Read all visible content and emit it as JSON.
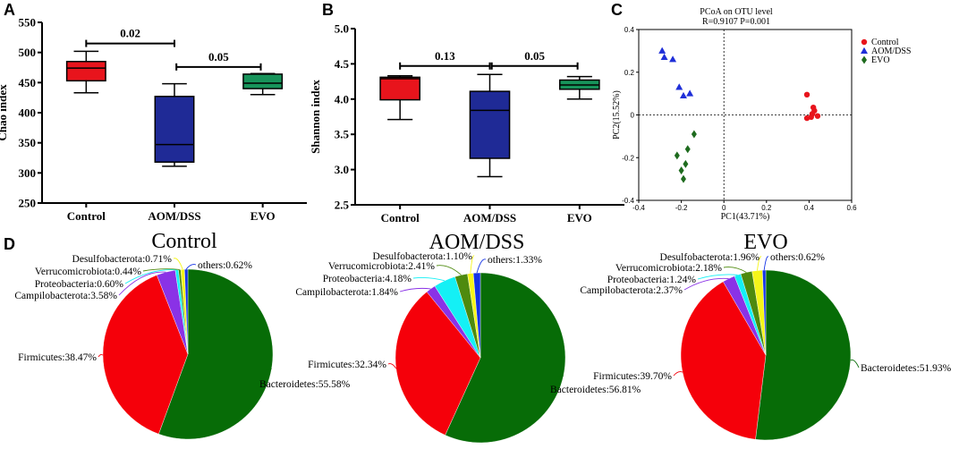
{
  "panel_letters": [
    "A",
    "B",
    "C",
    "D"
  ],
  "chart_data": [
    {
      "panel": "A",
      "type": "box",
      "ylabel": "Chao index",
      "ylim": [
        250,
        550
      ],
      "yticks": [
        "250",
        "300",
        "350",
        "400",
        "450",
        "500",
        "550"
      ],
      "categories": [
        "Control",
        "AOM/DSS",
        "EVO"
      ],
      "boxes": [
        {
          "name": "Control",
          "min": 433,
          "q1": 453,
          "median": 474,
          "q3": 485,
          "max": 502,
          "color": "#e8141c"
        },
        {
          "name": "AOM/DSS",
          "min": 311,
          "q1": 318,
          "median": 347,
          "q3": 427,
          "max": 448,
          "color": "#1f2a96"
        },
        {
          "name": "EVO",
          "min": 430,
          "q1": 440,
          "median": 449,
          "q3": 464,
          "max": 465,
          "color": "#17935a"
        }
      ],
      "significance": [
        {
          "from": 0,
          "to": 1,
          "label": "0.02",
          "y": 515
        },
        {
          "from": 1,
          "to": 2,
          "label": "0.05",
          "y": 476
        }
      ]
    },
    {
      "panel": "B",
      "type": "box",
      "ylabel": "Shannon index",
      "ylim": [
        2.5,
        5.0
      ],
      "yticks": [
        "2.5",
        "3.0",
        "3.5",
        "4.0",
        "4.5",
        "5.0"
      ],
      "categories": [
        "Control",
        "AOM/DSS",
        "EVO"
      ],
      "boxes": [
        {
          "name": "Control",
          "min": 3.71,
          "q1": 3.99,
          "median": 4.29,
          "q3": 4.31,
          "max": 4.33,
          "color": "#e8141c"
        },
        {
          "name": "AOM/DSS",
          "min": 2.9,
          "q1": 3.16,
          "median": 3.84,
          "q3": 4.11,
          "max": 4.35,
          "color": "#1f2a96"
        },
        {
          "name": "EVO",
          "min": 4.0,
          "q1": 4.14,
          "median": 4.2,
          "q3": 4.27,
          "max": 4.32,
          "color": "#17935a"
        }
      ],
      "significance": [
        {
          "from": 0,
          "to": 1,
          "label": "0.13",
          "y": 4.47
        },
        {
          "from": 1,
          "to": 2,
          "label": "0.05",
          "y": 4.47
        }
      ]
    },
    {
      "panel": "C",
      "type": "scatter",
      "title": "PCoA on OTU level",
      "stats": "R=0.9107  P=0.001",
      "xlabel": "PC1(43.71%)",
      "ylabel": "PC2(15.52%)",
      "xlim": [
        -0.4,
        0.6
      ],
      "ylim": [
        -0.4,
        0.4
      ],
      "xticks": [
        "-0.4",
        "-0.2",
        "0",
        "0.2",
        "0.4",
        "0.6"
      ],
      "yticks": [
        "-0.4",
        "-0.2",
        "0",
        "0.2",
        "0.4"
      ],
      "series": [
        {
          "name": "Control",
          "marker": "circle",
          "color": "#e8141c",
          "points": [
            [
              0.39,
              0.095
            ],
            [
              0.42,
              0.035
            ],
            [
              0.425,
              0.02
            ],
            [
              0.415,
              0.005
            ],
            [
              0.44,
              -0.005
            ],
            [
              0.39,
              -0.015
            ],
            [
              0.41,
              -0.01
            ]
          ]
        },
        {
          "name": "AOM/DSS",
          "marker": "triangle",
          "color": "#1f2fd8",
          "points": [
            [
              -0.29,
              0.3
            ],
            [
              -0.28,
              0.27
            ],
            [
              -0.24,
              0.26
            ],
            [
              -0.21,
              0.13
            ],
            [
              -0.19,
              0.09
            ],
            [
              -0.16,
              0.1
            ]
          ]
        },
        {
          "name": "EVO",
          "marker": "diamond",
          "color": "#1e6b1e",
          "points": [
            [
              -0.14,
              -0.09
            ],
            [
              -0.17,
              -0.16
            ],
            [
              -0.22,
              -0.19
            ],
            [
              -0.18,
              -0.23
            ],
            [
              -0.2,
              -0.26
            ],
            [
              -0.19,
              -0.3
            ]
          ]
        }
      ]
    },
    {
      "panel": "D",
      "type": "pie",
      "slice_order": [
        "Bacteroidetes",
        "Firmicutes",
        "Campilobacterota",
        "Proteobacteria",
        "Verrucomicrobiota",
        "Desulfobacterota",
        "others"
      ],
      "colors": {
        "Bacteroidetes": "#076c07",
        "Firmicutes": "#f5000a",
        "Campilobacterota": "#8a32e6",
        "Proteobacteria": "#14f0f5",
        "Verrucomicrobiota": "#4e8a0e",
        "Desulfobacterota": "#f5f51a",
        "others": "#1433e6"
      },
      "pies": [
        {
          "title": "Control",
          "values": {
            "Bacteroidetes": 55.58,
            "Firmicutes": 38.47,
            "Campilobacterota": 3.58,
            "Proteobacteria": 0.6,
            "Verrucomicrobiota": 0.44,
            "Desulfobacterota": 0.71,
            "others": 0.62
          },
          "labels": {
            "Bacteroidetes": "Bacteroidetes:55.58%",
            "Firmicutes": "Firmicutes:38.47%",
            "Campilobacterota": "Campilobacterota:3.58%",
            "Proteobacteria": "Proteobacteria:0.60%",
            "Verrucomicrobiota": "Verrucomicrobiota:0.44%",
            "Desulfobacterota": "Desulfobacterota:0.71%",
            "others": "others:0.62%"
          }
        },
        {
          "title": "AOM/DSS",
          "values": {
            "Bacteroidetes": 56.81,
            "Firmicutes": 32.34,
            "Campilobacterota": 1.84,
            "Proteobacteria": 4.18,
            "Verrucomicrobiota": 2.41,
            "Desulfobacterota": 1.1,
            "others": 1.33
          },
          "labels": {
            "Bacteroidetes": "Bacteroidetes:56.81%",
            "Firmicutes": "Firmicutes:32.34%",
            "Campilobacterota": "Campilobacterota:1.84%",
            "Proteobacteria": "Proteobacteria:4.18%",
            "Verrucomicrobiota": "Verrucomicrobiota:2.41%",
            "Desulfobacterota": "Desulfobacterota:1.10%",
            "others": "others:1.33%"
          }
        },
        {
          "title": "EVO",
          "values": {
            "Bacteroidetes": 51.93,
            "Firmicutes": 39.7,
            "Campilobacterota": 2.37,
            "Proteobacteria": 1.24,
            "Verrucomicrobiota": 2.18,
            "Desulfobacterota": 1.96,
            "others": 0.62
          },
          "labels": {
            "Bacteroidetes": "Bacteroidetes:51.93%",
            "Firmicutes": "Firmicutes:39.70%",
            "Campilobacterota": "Campilobacterota:2.37%",
            "Proteobacteria": "Proteobacteria:1.24%",
            "Verrucomicrobiota": "Verrucomicrobiota:2.18%",
            "Desulfobacterota": "Desulfobacterota:1.96%",
            "others": "others:0.62%"
          }
        }
      ]
    }
  ]
}
